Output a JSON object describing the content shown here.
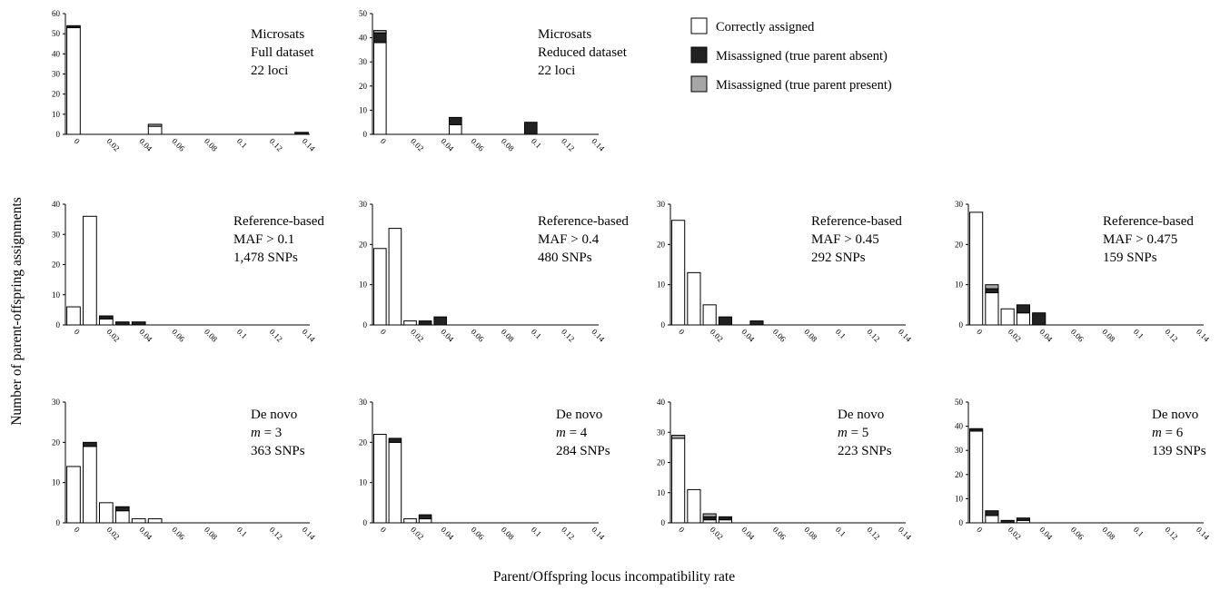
{
  "figure": {
    "ylabel": "Number of parent-offspring assignments",
    "xlabel": "Parent/Offspring locus incompatibility rate"
  },
  "legend": [
    {
      "label": "Correctly assigned",
      "color": "#ffffff"
    },
    {
      "label": "Misassigned (true parent absent)",
      "color": "#222222"
    },
    {
      "label": "Misassigned (true parent present)",
      "color": "#a6a6a6"
    }
  ],
  "colors": {
    "correct": "#ffffff",
    "absent": "#222222",
    "present": "#a6a6a6",
    "stroke": "#000000"
  },
  "chart_data": [
    {
      "type": "bar",
      "stacked": true,
      "annotation": [
        "Microsats",
        "Full dataset",
        "22 loci"
      ],
      "x": [
        0,
        0.05,
        0.14
      ],
      "x_ticks": [
        "0",
        "0.02",
        "0.04",
        "0.06",
        "0.08",
        "0.1",
        "0.12",
        "0.14"
      ],
      "ylim": [
        0,
        60
      ],
      "y_ticks": [
        0,
        10,
        20,
        30,
        40,
        50,
        60
      ],
      "series": [
        {
          "key": "correct",
          "values": [
            53,
            4,
            0
          ]
        },
        {
          "key": "absent",
          "values": [
            1,
            0,
            1
          ]
        },
        {
          "key": "present",
          "values": [
            0,
            1,
            0
          ]
        }
      ]
    },
    {
      "type": "bar",
      "stacked": true,
      "annotation": [
        "Microsats",
        "Reduced dataset",
        "22 loci"
      ],
      "x": [
        0,
        0.05,
        0.1
      ],
      "x_ticks": [
        "0",
        "0.02",
        "0.04",
        "0.06",
        "0.08",
        "0.1",
        "0.12",
        "0.14"
      ],
      "ylim": [
        0,
        50
      ],
      "y_ticks": [
        0,
        10,
        20,
        30,
        40,
        50
      ],
      "series": [
        {
          "key": "correct",
          "values": [
            38,
            4,
            0
          ]
        },
        {
          "key": "absent",
          "values": [
            4,
            3,
            5
          ]
        },
        {
          "key": "present",
          "values": [
            1,
            0,
            0
          ]
        }
      ]
    },
    {
      "type": "bar",
      "stacked": true,
      "annotation": [
        "Reference-based",
        "MAF > 0.1",
        "1,478 SNPs"
      ],
      "x": [
        0,
        0.01,
        0.02,
        0.03,
        0.04
      ],
      "x_ticks": [
        "0",
        "0.02",
        "0.04",
        "0.06",
        "0.08",
        "0.1",
        "0.12",
        "0.14"
      ],
      "ylim": [
        0,
        40
      ],
      "y_ticks": [
        0,
        10,
        20,
        30,
        40
      ],
      "series": [
        {
          "key": "correct",
          "values": [
            6,
            36,
            2,
            0,
            0
          ]
        },
        {
          "key": "absent",
          "values": [
            0,
            0,
            1,
            1,
            1
          ]
        },
        {
          "key": "present",
          "values": [
            0,
            0,
            0,
            0,
            0
          ]
        }
      ]
    },
    {
      "type": "bar",
      "stacked": true,
      "annotation": [
        "Reference-based",
        "MAF > 0.4",
        "480 SNPs"
      ],
      "x": [
        0,
        0.01,
        0.02,
        0.03,
        0.04
      ],
      "x_ticks": [
        "0",
        "0.02",
        "0.04",
        "0.06",
        "0.08",
        "0.1",
        "0.12",
        "0.14"
      ],
      "ylim": [
        0,
        30
      ],
      "y_ticks": [
        0,
        10,
        20,
        30
      ],
      "series": [
        {
          "key": "correct",
          "values": [
            19,
            24,
            1,
            0,
            0
          ]
        },
        {
          "key": "absent",
          "values": [
            0,
            0,
            0,
            1,
            2
          ]
        },
        {
          "key": "present",
          "values": [
            0,
            0,
            0,
            0,
            0
          ]
        }
      ]
    },
    {
      "type": "bar",
      "stacked": true,
      "annotation": [
        "Reference-based",
        "MAF > 0.45",
        "292 SNPs"
      ],
      "x": [
        0,
        0.01,
        0.02,
        0.03,
        0.05
      ],
      "x_ticks": [
        "0",
        "0.02",
        "0.04",
        "0.06",
        "0.08",
        "0.1",
        "0.12",
        "0.14"
      ],
      "ylim": [
        0,
        30
      ],
      "y_ticks": [
        0,
        10,
        20,
        30
      ],
      "series": [
        {
          "key": "correct",
          "values": [
            26,
            13,
            5,
            0,
            0
          ]
        },
        {
          "key": "absent",
          "values": [
            0,
            0,
            0,
            2,
            1
          ]
        },
        {
          "key": "present",
          "values": [
            0,
            0,
            0,
            0,
            0
          ]
        }
      ]
    },
    {
      "type": "bar",
      "stacked": true,
      "annotation": [
        "Reference-based",
        "MAF > 0.475",
        "159 SNPs"
      ],
      "x": [
        0,
        0.01,
        0.02,
        0.03,
        0.04
      ],
      "x_ticks": [
        "0",
        "0.02",
        "0.04",
        "0.06",
        "0.08",
        "0.1",
        "0.12",
        "0.14"
      ],
      "ylim": [
        0,
        30
      ],
      "y_ticks": [
        0,
        10,
        20,
        30
      ],
      "series": [
        {
          "key": "correct",
          "values": [
            28,
            8,
            4,
            3,
            0
          ]
        },
        {
          "key": "absent",
          "values": [
            0,
            1,
            0,
            2,
            3
          ]
        },
        {
          "key": "present",
          "values": [
            0,
            1,
            0,
            0,
            0
          ]
        }
      ]
    },
    {
      "type": "bar",
      "stacked": true,
      "annotation": [
        "De novo",
        "m = 3",
        "363 SNPs"
      ],
      "x": [
        0,
        0.01,
        0.02,
        0.03,
        0.04,
        0.05
      ],
      "x_ticks": [
        "0",
        "0.02",
        "0.04",
        "0.06",
        "0.08",
        "0.1",
        "0.12",
        "0.14"
      ],
      "ylim": [
        0,
        30
      ],
      "y_ticks": [
        0,
        10,
        20,
        30
      ],
      "series": [
        {
          "key": "correct",
          "values": [
            14,
            19,
            5,
            3,
            1,
            1
          ]
        },
        {
          "key": "absent",
          "values": [
            0,
            1,
            0,
            1,
            0,
            0
          ]
        },
        {
          "key": "present",
          "values": [
            0,
            0,
            0,
            0,
            0,
            0
          ]
        }
      ]
    },
    {
      "type": "bar",
      "stacked": true,
      "annotation": [
        "De novo",
        "m = 4",
        "284 SNPs"
      ],
      "x": [
        0,
        0.01,
        0.02,
        0.03
      ],
      "x_ticks": [
        "0",
        "0.02",
        "0.04",
        "0.06",
        "0.08",
        "0.1",
        "0.12",
        "0.14"
      ],
      "ylim": [
        0,
        30
      ],
      "y_ticks": [
        0,
        10,
        20,
        30
      ],
      "series": [
        {
          "key": "correct",
          "values": [
            22,
            20,
            1,
            1
          ]
        },
        {
          "key": "absent",
          "values": [
            0,
            1,
            0,
            1
          ]
        },
        {
          "key": "present",
          "values": [
            0,
            0,
            0,
            0
          ]
        }
      ]
    },
    {
      "type": "bar",
      "stacked": true,
      "annotation": [
        "De novo",
        "m = 5",
        "223 SNPs"
      ],
      "x": [
        0,
        0.01,
        0.02,
        0.03
      ],
      "x_ticks": [
        "0",
        "0.02",
        "0.04",
        "0.06",
        "0.08",
        "0.1",
        "0.12",
        "0.14"
      ],
      "ylim": [
        0,
        40
      ],
      "y_ticks": [
        0,
        10,
        20,
        30,
        40
      ],
      "series": [
        {
          "key": "correct",
          "values": [
            28,
            11,
            1,
            1
          ]
        },
        {
          "key": "absent",
          "values": [
            0,
            0,
            1,
            1
          ]
        },
        {
          "key": "present",
          "values": [
            1,
            0,
            1,
            0
          ]
        }
      ]
    },
    {
      "type": "bar",
      "stacked": true,
      "annotation": [
        "De novo",
        "m = 6",
        "139 SNPs"
      ],
      "x": [
        0,
        0.01,
        0.02,
        0.03
      ],
      "x_ticks": [
        "0",
        "0.02",
        "0.04",
        "0.06",
        "0.08",
        "0.1",
        "0.12",
        "0.14"
      ],
      "ylim": [
        0,
        50
      ],
      "y_ticks": [
        0,
        10,
        20,
        30,
        40,
        50
      ],
      "series": [
        {
          "key": "correct",
          "values": [
            38,
            3,
            0,
            1
          ]
        },
        {
          "key": "absent",
          "values": [
            1,
            2,
            1,
            1
          ]
        },
        {
          "key": "present",
          "values": [
            0,
            0,
            0,
            0
          ]
        }
      ]
    }
  ]
}
